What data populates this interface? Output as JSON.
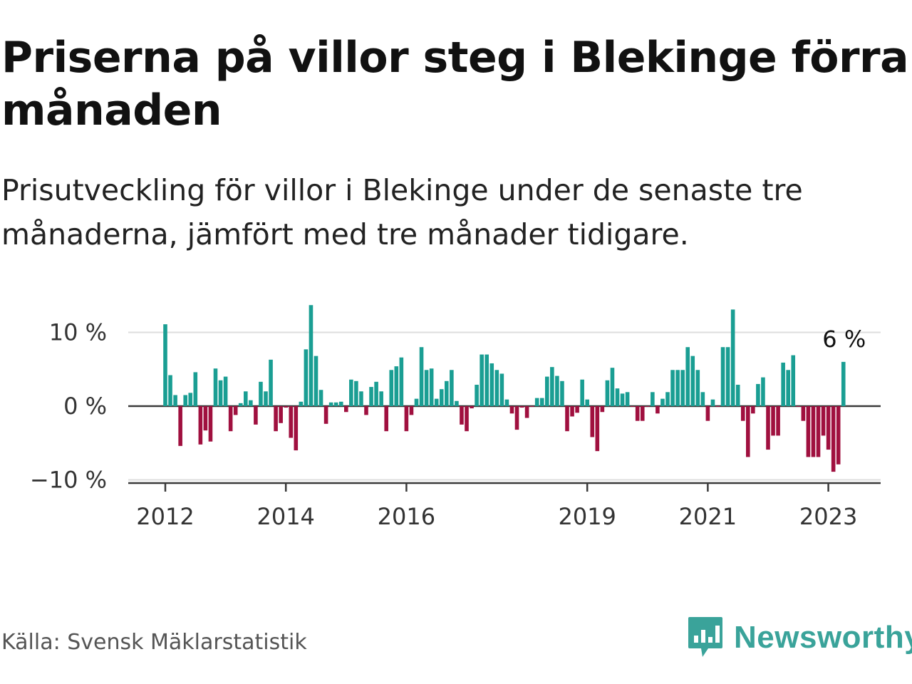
{
  "title": "Priserna på villor steg i Blekinge förra månaden",
  "subtitle": "Prisutveckling för villor i Blekinge under de senaste tre månaderna, jämfört med tre månader tidigare.",
  "source": "Källa: Svensk Mäklarstatistik",
  "brand": {
    "name": "Newsworthy",
    "icon": "newsworthy-logo-icon",
    "color": "#3aa39a"
  },
  "chart_data": {
    "type": "bar",
    "title": "Priserna på villor steg i Blekinge förra månaden",
    "subtitle": "Prisutveckling för villor i Blekinge under de senaste tre månaderna, jämfört med tre månader tidigare.",
    "xlabel": "",
    "ylabel": "",
    "x_start": "2012-01",
    "x_ticks": [
      "2012",
      "2014",
      "2016",
      "2019",
      "2021",
      "2023"
    ],
    "y_ticks": [
      {
        "value": 10,
        "label": "10 %"
      },
      {
        "value": 0,
        "label": "0 %"
      },
      {
        "value": -10,
        "label": "−10 %"
      }
    ],
    "ylim": [
      -10.5,
      14
    ],
    "grid": true,
    "positive_color": "#1a9e93",
    "negative_color": "#a0103f",
    "last_label": "6 %",
    "values": [
      11.1,
      4.2,
      1.5,
      -5.4,
      1.5,
      1.8,
      4.6,
      -5.2,
      -3.3,
      -4.8,
      5.1,
      3.5,
      4.0,
      -3.4,
      -1.2,
      0.4,
      2.0,
      0.8,
      -2.5,
      3.3,
      2.0,
      6.3,
      -3.4,
      -2.3,
      -0.2,
      -4.3,
      -6.0,
      0.6,
      7.7,
      13.7,
      6.8,
      2.2,
      -2.4,
      0.5,
      0.5,
      0.6,
      -0.8,
      3.6,
      3.4,
      2.0,
      -1.2,
      2.6,
      3.3,
      2.0,
      -3.4,
      4.9,
      5.4,
      6.6,
      -3.4,
      -1.2,
      1.0,
      8.0,
      4.9,
      5.1,
      1.0,
      2.3,
      3.4,
      4.9,
      0.7,
      -2.5,
      -3.4,
      -0.3,
      2.9,
      7.0,
      7.0,
      5.8,
      4.9,
      4.4,
      0.9,
      -1.0,
      -3.2,
      -0.2,
      -1.6,
      -0.1,
      1.1,
      1.1,
      4.0,
      5.3,
      4.1,
      3.4,
      -3.4,
      -1.4,
      -0.9,
      3.6,
      0.9,
      -4.2,
      -6.1,
      -0.8,
      3.5,
      5.2,
      2.4,
      1.7,
      1.9,
      -0.1,
      -2.0,
      -2.0,
      -0.1,
      1.9,
      -1.0,
      1.0,
      1.9,
      4.9,
      4.9,
      4.9,
      8.0,
      6.8,
      4.9,
      1.9,
      -2.0,
      0.9,
      -0.1,
      8.0,
      8.0,
      13.1,
      2.9,
      -2.0,
      -6.9,
      -1.0,
      3.0,
      3.9,
      -5.9,
      -4.0,
      -4.0,
      5.9,
      4.9,
      6.9,
      -0.1,
      -2.0,
      -6.9,
      -6.9,
      -6.9,
      -4.0,
      -5.9,
      -8.9,
      -7.9,
      6.0
    ]
  }
}
